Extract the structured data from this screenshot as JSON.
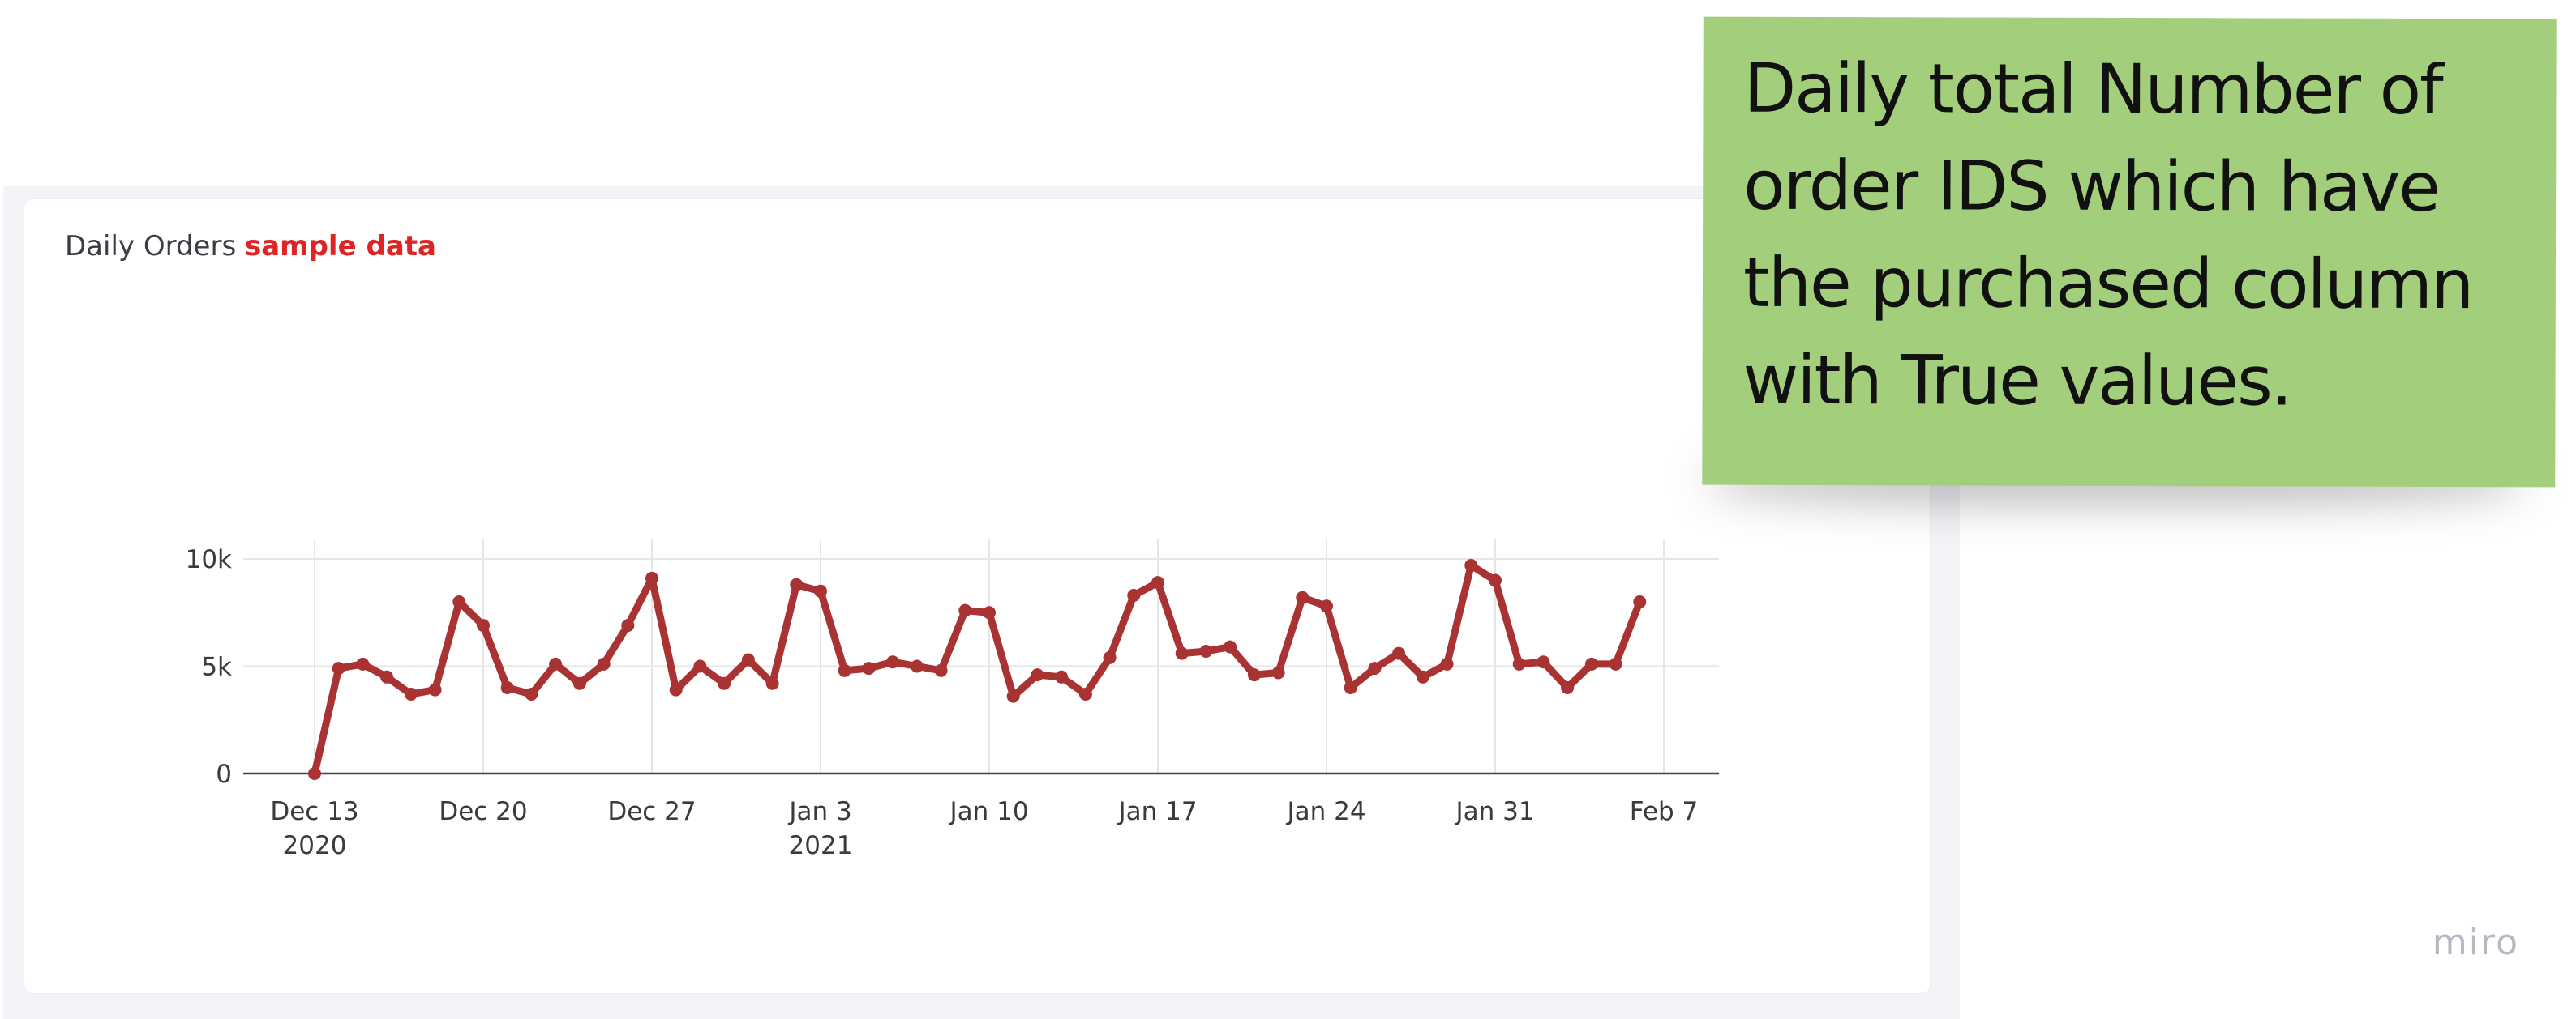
{
  "card": {
    "title": "Daily Orders",
    "tag": "sample data",
    "tag_color": "#e02424"
  },
  "sticky_note": {
    "text": "Daily total Number of order IDS which have the purchased column with True values.",
    "color": "#a3cf7c"
  },
  "watermark": "miro",
  "chart_data": {
    "type": "line",
    "title": "",
    "xlabel": "",
    "ylabel": "",
    "grid": true,
    "line_color": "#a93333",
    "ylim": [
      0,
      10000
    ],
    "yticks": [
      {
        "value": 0,
        "label": "0"
      },
      {
        "value": 5000,
        "label": "5k"
      },
      {
        "value": 10000,
        "label": "10k"
      }
    ],
    "xlim": [
      "2020-12-13",
      "2021-02-09"
    ],
    "xticks": [
      {
        "date": "2020-12-13",
        "label": "Dec 13",
        "sublabel": "2020"
      },
      {
        "date": "2020-12-20",
        "label": "Dec 20",
        "sublabel": ""
      },
      {
        "date": "2020-12-27",
        "label": "Dec 27",
        "sublabel": ""
      },
      {
        "date": "2021-01-03",
        "label": "Jan 3",
        "sublabel": "2021"
      },
      {
        "date": "2021-01-10",
        "label": "Jan 10",
        "sublabel": ""
      },
      {
        "date": "2021-01-17",
        "label": "Jan 17",
        "sublabel": ""
      },
      {
        "date": "2021-01-24",
        "label": "Jan 24",
        "sublabel": ""
      },
      {
        "date": "2021-01-31",
        "label": "Jan 31",
        "sublabel": ""
      },
      {
        "date": "2021-02-07",
        "label": "Feb 7",
        "sublabel": ""
      }
    ],
    "series": [
      {
        "start_date": "2020-12-13",
        "values": [
          0,
          4900,
          5100,
          4500,
          3700,
          3900,
          8000,
          6900,
          4000,
          3700,
          5100,
          4200,
          5100,
          6900,
          9100,
          3900,
          5000,
          4200,
          5300,
          4200,
          8800,
          8500,
          4800,
          4900,
          5200,
          5000,
          4800,
          7600,
          7500,
          3600,
          4600,
          4500,
          3700,
          5400,
          8300,
          8900,
          5600,
          5700,
          5900,
          4600,
          4700,
          8200,
          7800,
          4000,
          4900,
          5600,
          4500,
          5100,
          9700,
          9000,
          5100,
          5200,
          4000,
          5100,
          5100,
          8000
        ]
      }
    ]
  }
}
